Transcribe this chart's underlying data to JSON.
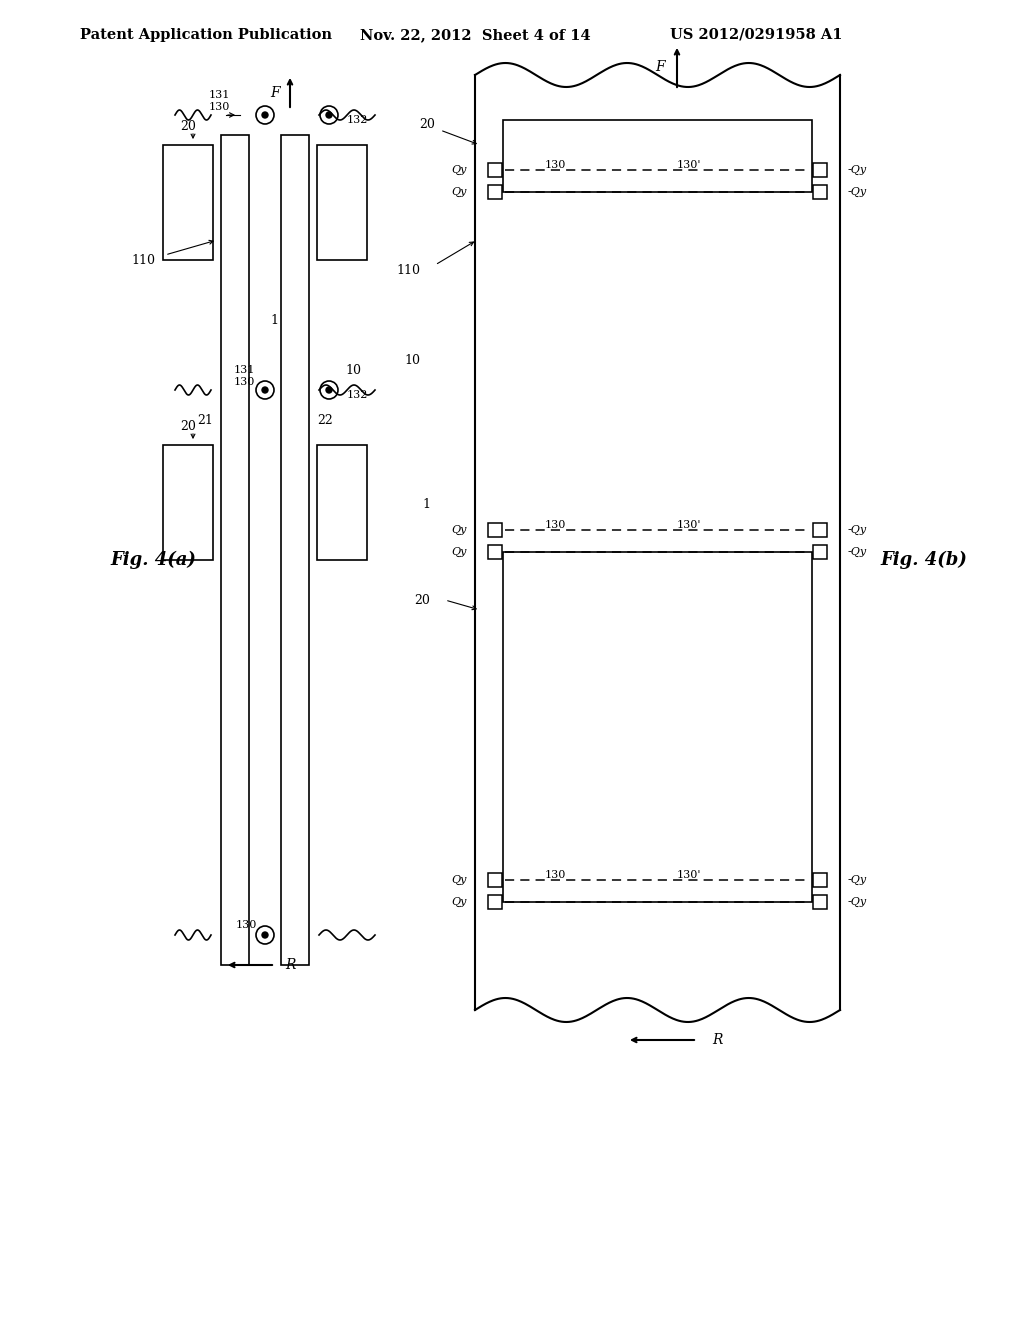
{
  "title_text": "Patent Application Publication",
  "date_text": "Nov. 22, 2012  Sheet 4 of 14",
  "patent_text": "US 2012/0291958 A1",
  "fig_a_label": "Fig. 4(a)",
  "fig_b_label": "Fig. 4(b)",
  "bg_color": "#ffffff",
  "line_color": "#000000",
  "header_fontsize": 10.5,
  "fig_label_fontsize": 13
}
